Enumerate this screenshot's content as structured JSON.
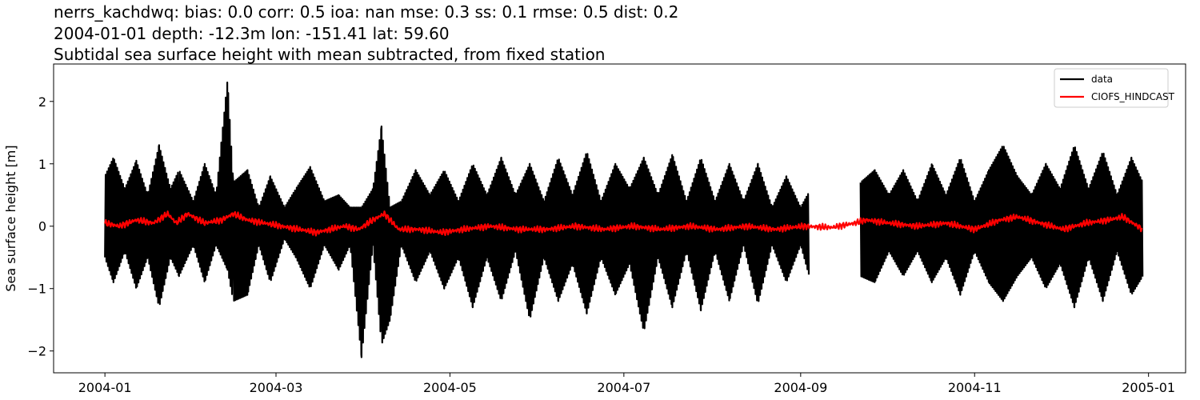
{
  "chart_data": {
    "type": "line",
    "title_lines": [
      "nerrs_kachdwq: bias: 0.0  corr: 0.5  ioa: nan  mse: 0.3  ss: 0.1  rmse: 0.5  dist: 0.2",
      "2004-01-01 depth: -12.3m lon: -151.41 lat: 59.60",
      "Subtidal sea surface height with mean subtracted, from fixed station"
    ],
    "xlabel": "",
    "ylabel": "Sea surface height [m]",
    "xlim": [
      "2003-12-14",
      "2005-01-14"
    ],
    "ylim": [
      -2.35,
      2.6
    ],
    "x_ticks": [
      "2004-01",
      "2004-03",
      "2004-05",
      "2004-07",
      "2004-09",
      "2004-11",
      "2005-01"
    ],
    "y_ticks": [
      -2,
      -1,
      0,
      1,
      2
    ],
    "y_tick_labels": [
      "−2",
      "−1",
      "0",
      "1",
      "2"
    ],
    "legend": {
      "position": "upper right",
      "entries": [
        "data",
        "CIOFS_HINDCAST"
      ]
    },
    "grid": false,
    "series": [
      {
        "name": "data",
        "color": "#000000",
        "envelope_note": "tidal oscillation; approximate max/min envelope per date",
        "x": [
          "2004-01-01",
          "2004-01-04",
          "2004-01-08",
          "2004-01-12",
          "2004-01-16",
          "2004-01-20",
          "2004-01-24",
          "2004-01-27",
          "2004-02-01",
          "2004-02-05",
          "2004-02-09",
          "2004-02-13",
          "2004-02-15",
          "2004-02-20",
          "2004-02-24",
          "2004-02-28",
          "2004-03-04",
          "2004-03-08",
          "2004-03-13",
          "2004-03-18",
          "2004-03-23",
          "2004-03-27",
          "2004-03-31",
          "2004-04-04",
          "2004-04-07",
          "2004-04-10",
          "2004-04-14",
          "2004-04-19",
          "2004-04-24",
          "2004-04-29",
          "2004-05-04",
          "2004-05-09",
          "2004-05-14",
          "2004-05-19",
          "2004-05-24",
          "2004-05-29",
          "2004-06-03",
          "2004-06-08",
          "2004-06-13",
          "2004-06-18",
          "2004-06-23",
          "2004-06-28",
          "2004-07-03",
          "2004-07-08",
          "2004-07-13",
          "2004-07-18",
          "2004-07-23",
          "2004-07-28",
          "2004-08-02",
          "2004-08-07",
          "2004-08-12",
          "2004-08-17",
          "2004-08-22",
          "2004-08-27",
          "2004-09-01",
          "2004-09-04",
          "2004-09-22",
          "2004-09-27",
          "2004-10-02",
          "2004-10-07",
          "2004-10-12",
          "2004-10-17",
          "2004-10-22",
          "2004-10-27",
          "2004-11-01",
          "2004-11-06",
          "2004-11-11",
          "2004-11-16",
          "2004-11-21",
          "2004-11-26",
          "2004-12-01",
          "2004-12-06",
          "2004-12-11",
          "2004-12-16",
          "2004-12-21",
          "2004-12-26",
          "2004-12-30"
        ],
        "max": [
          0.8,
          1.1,
          0.6,
          1.05,
          0.5,
          1.3,
          0.6,
          0.9,
          0.4,
          1.0,
          0.5,
          2.35,
          0.7,
          0.9,
          0.3,
          0.8,
          0.3,
          0.6,
          0.95,
          0.4,
          0.5,
          0.3,
          0.3,
          0.6,
          1.6,
          0.3,
          0.4,
          0.9,
          0.5,
          0.9,
          0.4,
          1.0,
          0.5,
          1.1,
          0.5,
          1.0,
          0.4,
          1.1,
          0.5,
          1.2,
          0.4,
          1.0,
          0.6,
          1.1,
          0.5,
          1.15,
          0.4,
          1.1,
          0.4,
          1.0,
          0.4,
          1.0,
          0.3,
          0.8,
          0.3,
          0.55,
          0.7,
          0.9,
          0.5,
          0.9,
          0.4,
          1.0,
          0.5,
          1.1,
          0.4,
          0.9,
          1.3,
          0.8,
          0.5,
          1.0,
          0.6,
          1.3,
          0.6,
          1.2,
          0.5,
          1.1,
          0.7
        ],
        "min": [
          -0.5,
          -0.9,
          -0.4,
          -1.0,
          -0.5,
          -1.3,
          -0.5,
          -0.8,
          -0.3,
          -0.9,
          -0.3,
          -0.7,
          -1.2,
          -1.1,
          -0.3,
          -0.9,
          -0.2,
          -0.5,
          -1.0,
          -0.3,
          -0.7,
          -0.3,
          -2.1,
          -0.3,
          -1.9,
          -1.5,
          -0.3,
          -0.9,
          -0.4,
          -1.0,
          -0.5,
          -1.3,
          -0.5,
          -1.2,
          -0.4,
          -1.5,
          -0.5,
          -1.2,
          -0.6,
          -1.4,
          -0.5,
          -1.1,
          -0.6,
          -1.7,
          -0.5,
          -1.3,
          -0.4,
          -1.35,
          -0.4,
          -1.2,
          -0.3,
          -1.25,
          -0.3,
          -0.9,
          -0.3,
          -0.8,
          -0.8,
          -0.9,
          -0.4,
          -0.8,
          -0.4,
          -0.9,
          -0.5,
          -1.1,
          -0.4,
          -0.9,
          -1.2,
          -0.8,
          -0.5,
          -1.0,
          -0.6,
          -1.3,
          -0.5,
          -1.2,
          -0.4,
          -1.1,
          -0.8
        ]
      },
      {
        "name": "CIOFS_HINDCAST",
        "color": "#ff0000",
        "x": [
          "2004-01-01",
          "2004-01-06",
          "2004-01-12",
          "2004-01-18",
          "2004-01-23",
          "2004-01-26",
          "2004-01-30",
          "2004-02-05",
          "2004-02-11",
          "2004-02-15",
          "2004-02-20",
          "2004-02-26",
          "2004-03-03",
          "2004-03-09",
          "2004-03-15",
          "2004-03-20",
          "2004-03-25",
          "2004-03-30",
          "2004-04-04",
          "2004-04-08",
          "2004-04-13",
          "2004-04-20",
          "2004-04-28",
          "2004-05-06",
          "2004-05-15",
          "2004-05-25",
          "2004-06-04",
          "2004-06-14",
          "2004-06-24",
          "2004-07-04",
          "2004-07-14",
          "2004-07-24",
          "2004-08-03",
          "2004-08-13",
          "2004-08-23",
          "2004-09-02",
          "2004-09-12",
          "2004-09-20",
          "2004-09-24",
          "2004-10-02",
          "2004-10-12",
          "2004-10-22",
          "2004-11-01",
          "2004-11-10",
          "2004-11-16",
          "2004-11-24",
          "2004-12-02",
          "2004-12-10",
          "2004-12-18",
          "2004-12-23",
          "2004-12-30"
        ],
        "y": [
          0.05,
          0.0,
          0.1,
          0.05,
          0.2,
          0.05,
          0.2,
          0.05,
          0.1,
          0.2,
          0.1,
          0.05,
          0.0,
          -0.05,
          -0.1,
          -0.05,
          0.0,
          -0.05,
          0.1,
          0.2,
          -0.05,
          -0.05,
          -0.1,
          -0.05,
          0.0,
          -0.05,
          -0.05,
          0.0,
          -0.05,
          0.0,
          -0.05,
          0.0,
          -0.05,
          0.0,
          -0.05,
          0.0,
          -0.02,
          0.05,
          0.1,
          0.05,
          0.0,
          0.05,
          -0.05,
          0.1,
          0.15,
          0.05,
          -0.05,
          0.05,
          0.1,
          0.15,
          -0.05
        ]
      }
    ]
  }
}
